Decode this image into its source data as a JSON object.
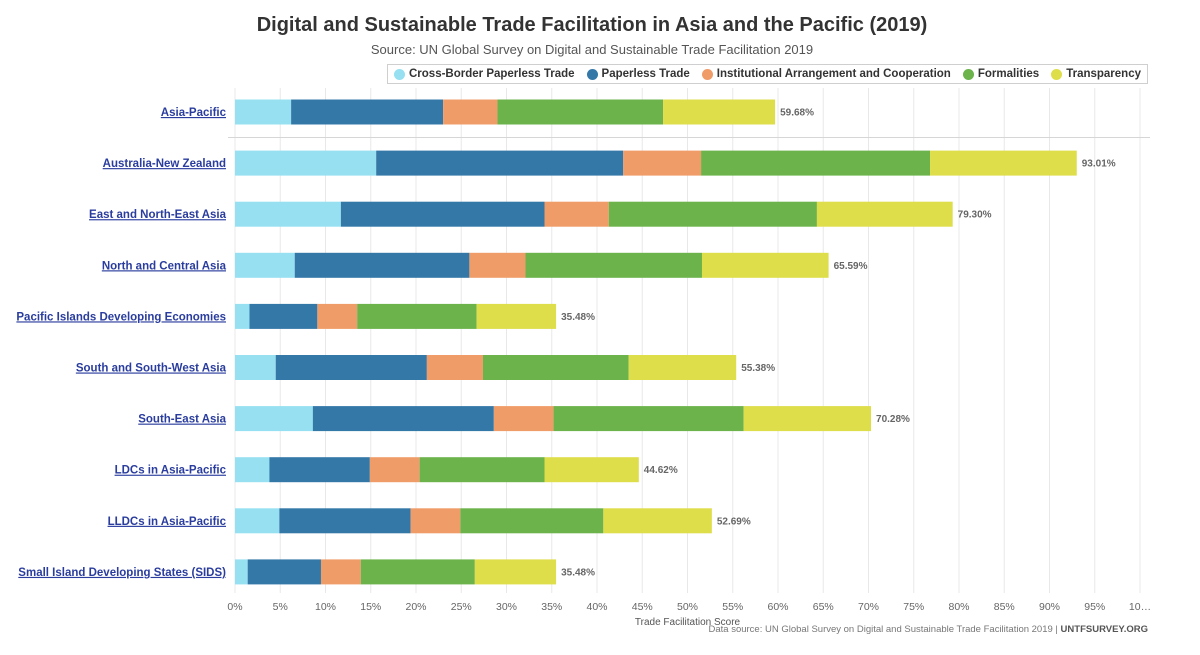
{
  "chart_data": {
    "type": "bar",
    "orientation": "horizontal",
    "stacked": true,
    "title": "Digital and Sustainable Trade Facilitation in Asia and the Pacific (2019)",
    "subtitle": "Source: UN Global Survey on Digital and Sustainable Trade Facilitation 2019",
    "xlabel": "Trade Facilitation Score",
    "ylabel": "",
    "xlim": [
      0,
      100
    ],
    "x_ticks": [
      "0%",
      "5%",
      "10%",
      "15%",
      "20%",
      "25%",
      "30%",
      "35%",
      "40%",
      "45%",
      "50%",
      "55%",
      "60%",
      "65%",
      "70%",
      "75%",
      "80%",
      "85%",
      "90%",
      "95%",
      "10…"
    ],
    "grid": true,
    "legend_position": "top-right",
    "categories": [
      "Asia-Pacific",
      "Australia-New Zealand",
      "East and North-East Asia",
      "North and Central Asia",
      "Pacific Islands Developing Economies",
      "South and South-West Asia",
      "South-East Asia",
      "LDCs in Asia-Pacific",
      "LLDCs in Asia-Pacific",
      "Small Island Developing States (SIDS)"
    ],
    "series": [
      {
        "name": "Cross-Border Paperless Trade",
        "color": "#96e0f2",
        "values": [
          6.2,
          15.6,
          11.7,
          6.6,
          1.6,
          4.5,
          8.6,
          3.8,
          4.9,
          1.4
        ]
      },
      {
        "name": "Paperless Trade",
        "color": "#3478a8",
        "values": [
          16.8,
          27.3,
          22.5,
          19.3,
          7.5,
          16.7,
          20.0,
          11.1,
          14.5,
          8.1
        ]
      },
      {
        "name": "Institutional Arrangement and Cooperation",
        "color": "#f09c68",
        "values": [
          6.0,
          8.6,
          7.1,
          6.2,
          4.4,
          6.2,
          6.6,
          5.5,
          5.5,
          4.4
        ]
      },
      {
        "name": "Formalities",
        "color": "#6bb34a",
        "values": [
          18.3,
          25.3,
          23.0,
          19.5,
          13.2,
          16.1,
          21.0,
          13.8,
          15.8,
          12.6
        ]
      },
      {
        "name": "Transparency",
        "color": "#dedd4a",
        "values": [
          12.38,
          16.21,
          15.0,
          13.99,
          8.78,
          11.88,
          14.08,
          10.42,
          11.99,
          8.98
        ]
      }
    ],
    "totals_labels": [
      "59.68%",
      "93.01%",
      "79.30%",
      "65.59%",
      "35.48%",
      "55.38%",
      "70.28%",
      "44.62%",
      "52.69%",
      "35.48%"
    ]
  },
  "footer": {
    "note": "Data source: UN Global Survey on Digital and Sustainable Trade Facilitation 2019 | ",
    "brand": "UNTFSURVEY.ORG"
  }
}
